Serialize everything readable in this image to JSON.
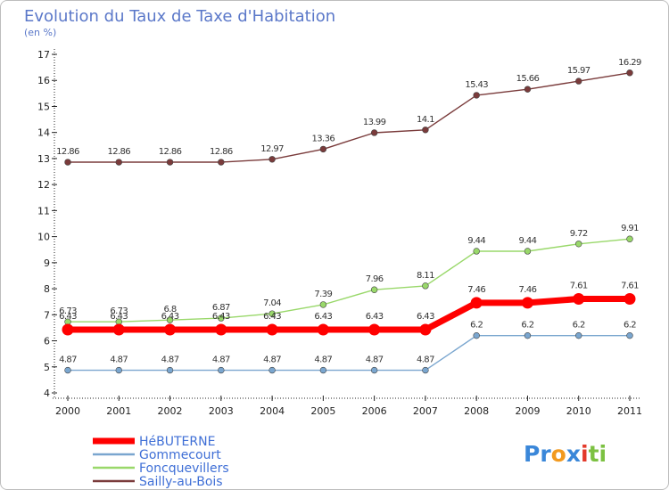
{
  "chart_data": {
    "type": "line",
    "title": "Evolution du Taux de Taxe d'Habitation",
    "subtitle": "(en %)",
    "x": [
      "2000",
      "2001",
      "2002",
      "2003",
      "2004",
      "2005",
      "2006",
      "2007",
      "2008",
      "2009",
      "2010",
      "2011"
    ],
    "ylim": [
      4,
      17
    ],
    "yticks": [
      "4",
      "5",
      "6",
      "7",
      "8",
      "9",
      "10",
      "11",
      "12",
      "13",
      "14",
      "15",
      "16",
      "17"
    ],
    "legend_position": "bottom-left",
    "series": [
      {
        "name": "HéBUTERNE",
        "color": "#ff0000",
        "values": [
          6.43,
          6.43,
          6.43,
          6.43,
          6.43,
          6.43,
          6.43,
          6.43,
          7.46,
          7.46,
          7.61,
          7.61
        ],
        "labels": [
          "6.43",
          "6.43",
          "6.43",
          "6.43",
          "6.43",
          "6.43",
          "6.43",
          "6.43",
          "7.46",
          "7.46",
          "7.61",
          "7.61"
        ]
      },
      {
        "name": "Gommecourt",
        "color": "#7aa6cf",
        "values": [
          4.87,
          4.87,
          4.87,
          4.87,
          4.87,
          4.87,
          4.87,
          4.87,
          6.2,
          6.2,
          6.2,
          6.2
        ],
        "labels": [
          "4.87",
          "4.87",
          "4.87",
          "4.87",
          "4.87",
          "4.87",
          "4.87",
          "4.87",
          "6.2",
          "6.2",
          "6.2",
          "6.2"
        ]
      },
      {
        "name": "Foncquevillers",
        "color": "#99d86a",
        "values": [
          6.73,
          6.73,
          6.8,
          6.87,
          7.04,
          7.39,
          7.96,
          8.11,
          9.44,
          9.44,
          9.72,
          9.91
        ],
        "labels": [
          "6.73",
          "6.73",
          "6.8",
          "6.87",
          "7.04",
          "7.39",
          "7.96",
          "8.11",
          "9.44",
          "9.44",
          "9.72",
          "9.91"
        ]
      },
      {
        "name": "Sailly-au-Bois",
        "color": "#7a3b3b",
        "values": [
          12.86,
          12.86,
          12.86,
          12.86,
          12.97,
          13.36,
          13.99,
          14.1,
          15.43,
          15.66,
          15.97,
          16.29
        ],
        "labels": [
          "12.86",
          "12.86",
          "12.86",
          "12.86",
          "12.97",
          "13.36",
          "13.99",
          "14.1",
          "15.43",
          "15.66",
          "15.97",
          "16.29"
        ]
      }
    ]
  },
  "logo": {
    "text": "Proxiti"
  }
}
